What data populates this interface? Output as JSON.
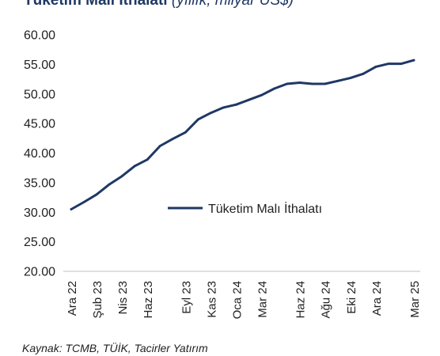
{
  "header": {
    "title": "Tüketim Malı İthalatı",
    "subtitle": "(yıllık, milyar US$)"
  },
  "footer": {
    "source": "Kaynak: TCMB, TÜİK, Tacirler Yatırım"
  },
  "colors": {
    "series": "#1f3864",
    "text": "#222222",
    "axis": "#bfbfbf"
  },
  "chart_data": {
    "type": "line",
    "title": "Tüketim Malı İthalatı (yıllık, milyar US$)",
    "xlabel": "",
    "ylabel": "",
    "ylim": [
      20,
      60
    ],
    "yticks": [
      "20.00",
      "25.00",
      "30.00",
      "35.00",
      "40.00",
      "45.00",
      "50.00",
      "55.00",
      "60.00"
    ],
    "grid": false,
    "legend": "center-right",
    "x": [
      "Ara 22",
      "Oca 23",
      "Şub 23",
      "Mar 23",
      "Nis 23",
      "May 23",
      "Haz 23",
      "Tem 23",
      "Ağu 23",
      "Eyl 23",
      "Eki 23",
      "Kas 23",
      "Ara 23",
      "Oca 24",
      "Şub 24",
      "Mar 24",
      "Nis 24",
      "May 24",
      "Haz 24",
      "Tem 24",
      "Ağu 24",
      "Eyl 24",
      "Eki 24",
      "Kas 24",
      "Ara 24",
      "Oca 25",
      "Şub 25",
      "Mar 25"
    ],
    "xtick_labels": [
      "Ara 22",
      "Şub 23",
      "Nis 23",
      "Haz 23",
      "Eyl 23",
      "Kas 23",
      "Oca 24",
      "Mar 24",
      "Haz 24",
      "Ağu 24",
      "Eki 24",
      "Ara 24",
      "Mar 25"
    ],
    "series": [
      {
        "name": "Tüketim Malı İthalatı",
        "values": [
          30.5,
          31.7,
          33.0,
          34.7,
          36.1,
          37.8,
          38.9,
          41.2,
          42.4,
          43.5,
          45.7,
          46.8,
          47.7,
          48.2,
          49.0,
          49.8,
          50.9,
          51.7,
          51.9,
          51.7,
          51.7,
          52.2,
          52.7,
          53.4,
          54.6,
          55.1,
          55.1,
          55.7
        ]
      }
    ]
  }
}
